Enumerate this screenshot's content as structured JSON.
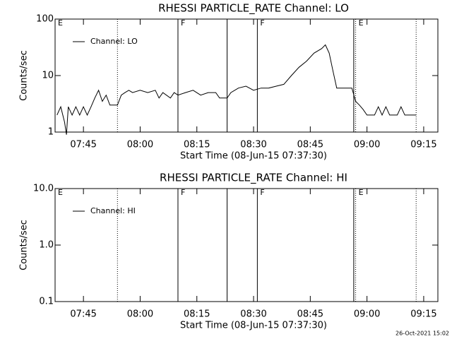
{
  "chart_data": [
    {
      "type": "line",
      "title": "RHESSI PARTICLE_RATE Channel: LO",
      "xlabel": "Start Time (08-Jun-15 07:37:30)",
      "ylabel": "Counts/sec",
      "xlim": [
        "07:37:30",
        "09:18:45"
      ],
      "xticks": [
        "07:45",
        "08:00",
        "08:15",
        "08:30",
        "08:45",
        "09:00",
        "09:15"
      ],
      "ylim": [
        1,
        100
      ],
      "yticks": [
        1,
        10,
        100
      ],
      "log_y": true,
      "legend": "upper left",
      "markers": [
        {
          "x": "07:54",
          "style": "dotted"
        },
        {
          "x": "08:10",
          "style": "solid"
        },
        {
          "x": "08:23",
          "style": "solid"
        },
        {
          "x": "08:31",
          "style": "solid"
        },
        {
          "x": "08:56:30",
          "style": "solid"
        },
        {
          "x": "08:57",
          "style": "dotted"
        },
        {
          "x": "09:13",
          "style": "dotted"
        }
      ],
      "annotations": [
        {
          "text": "E",
          "x": "07:37:30"
        },
        {
          "text": "F",
          "x": "08:10"
        },
        {
          "text": "F",
          "x": "08:31"
        },
        {
          "text": "E",
          "x": "08:57"
        }
      ],
      "series": [
        {
          "name": "Channel: LO",
          "color": "#000000",
          "x": [
            "07:38",
            "07:39",
            "07:40",
            "07:40:30",
            "07:41",
            "07:42",
            "07:43",
            "07:44",
            "07:45",
            "07:46",
            "07:47",
            "07:48",
            "07:49",
            "07:50",
            "07:51",
            "07:52",
            "07:53",
            "07:54",
            "07:55",
            "07:56",
            "07:57",
            "07:58",
            "08:00",
            "08:02",
            "08:04",
            "08:05",
            "08:06",
            "08:08",
            "08:09",
            "08:10",
            "08:12",
            "08:14",
            "08:16",
            "08:18",
            "08:20",
            "08:21",
            "08:23",
            "08:24",
            "08:26",
            "08:28",
            "08:30",
            "08:32",
            "08:34",
            "08:36",
            "08:38",
            "08:40",
            "08:42",
            "08:44",
            "08:46",
            "08:48",
            "08:49",
            "08:50",
            "08:51",
            "08:52",
            "08:54",
            "08:56",
            "08:57",
            "08:58",
            "08:59",
            "09:00",
            "09:02",
            "09:03",
            "09:04",
            "09:05",
            "09:06",
            "09:08",
            "09:09",
            "09:10",
            "09:13"
          ],
          "values": [
            2,
            2.8,
            1.5,
            0.9,
            2.8,
            2,
            2.8,
            2,
            2.8,
            2,
            2.8,
            4,
            5.5,
            3.5,
            4.5,
            3,
            3,
            3,
            4.5,
            5,
            5.5,
            5,
            5.5,
            5,
            5.5,
            4,
            5,
            4,
            5,
            4.5,
            5,
            5.5,
            4.5,
            5,
            5,
            4,
            4,
            5,
            6,
            6.5,
            5.5,
            6,
            6,
            6.5,
            7,
            10,
            14,
            18,
            25,
            30,
            35,
            25,
            12,
            6,
            6,
            6,
            3.5,
            3,
            2.5,
            2,
            2,
            2.8,
            2,
            2.8,
            2,
            2,
            2.8,
            2,
            2
          ]
        }
      ]
    },
    {
      "type": "line",
      "title": "RHESSI PARTICLE_RATE Channel: HI",
      "xlabel": "Start Time (08-Jun-15 07:37:30)",
      "ylabel": "Counts/sec",
      "xlim": [
        "07:37:30",
        "09:18:45"
      ],
      "xticks": [
        "07:45",
        "08:00",
        "08:15",
        "08:30",
        "08:45",
        "09:00",
        "09:15"
      ],
      "ylim": [
        0.1,
        10
      ],
      "yticks": [
        0.1,
        {
          "value": 1,
          "label": "1.0"
        },
        {
          "value": 10,
          "label": "10.0"
        }
      ],
      "log_y": true,
      "legend": "upper left",
      "markers": [
        {
          "x": "07:54",
          "style": "dotted"
        },
        {
          "x": "08:10",
          "style": "solid"
        },
        {
          "x": "08:23",
          "style": "solid"
        },
        {
          "x": "08:31",
          "style": "solid"
        },
        {
          "x": "08:56:30",
          "style": "solid"
        },
        {
          "x": "08:57",
          "style": "dotted"
        },
        {
          "x": "09:13",
          "style": "dotted"
        }
      ],
      "annotations": [
        {
          "text": "E",
          "x": "07:37:30"
        },
        {
          "text": "F",
          "x": "08:10"
        },
        {
          "text": "F",
          "x": "08:31"
        },
        {
          "text": "E",
          "x": "08:57"
        }
      ],
      "series": [
        {
          "name": "Channel: HI",
          "color": "#000000",
          "x": [],
          "values": []
        }
      ]
    }
  ],
  "footer": "26-Oct-2021 15:02"
}
